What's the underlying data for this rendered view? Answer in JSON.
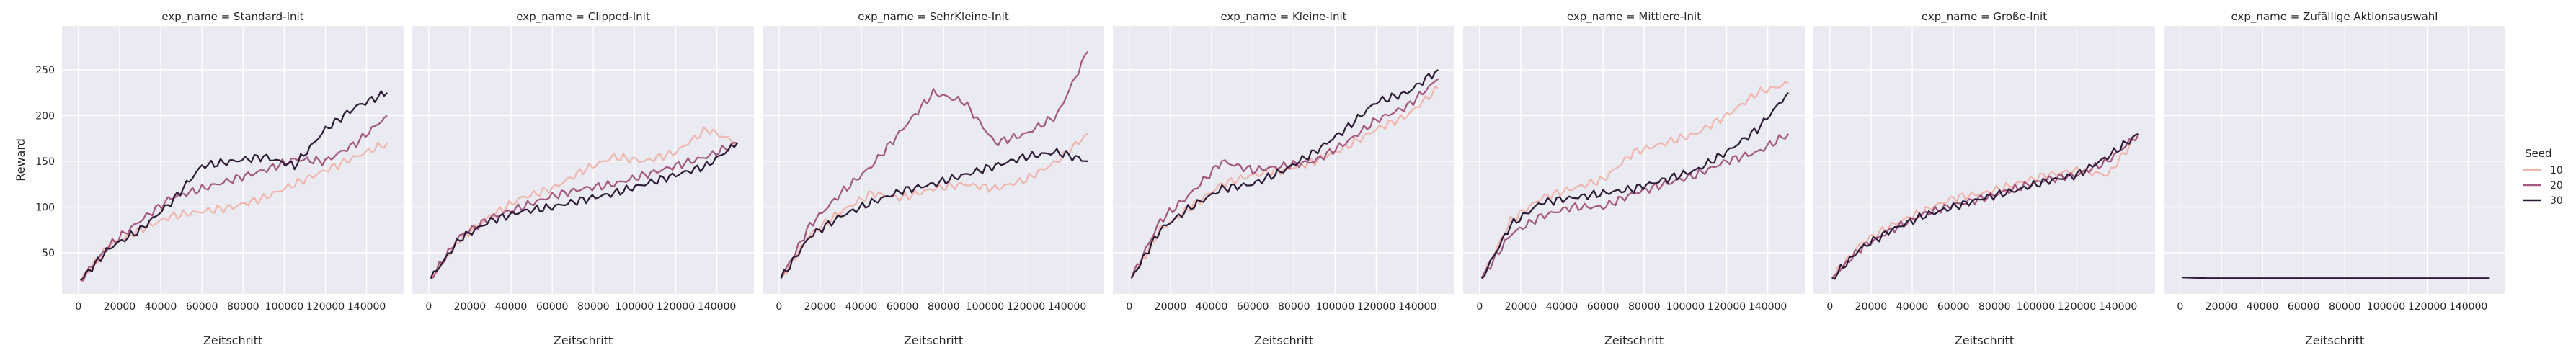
{
  "chart_data": {
    "type": "line",
    "facet_titles": [
      "exp_name = Standard-Init",
      "exp_name = Clipped-Init",
      "exp_name = SehrKleine-Init",
      "exp_name = Kleine-Init",
      "exp_name = Mittlere-Init",
      "exp_name = Große-Init",
      "exp_name = Zufällige Aktionsauswahl"
    ],
    "xlabel": "Zeitschritt",
    "ylabel": "Reward",
    "x_ticks": [
      0,
      20000,
      40000,
      60000,
      80000,
      100000,
      120000,
      140000
    ],
    "y_ticks": [
      50,
      100,
      150,
      200,
      250
    ],
    "xlim": [
      -8000,
      158000
    ],
    "ylim": [
      5,
      298
    ],
    "grid": true,
    "legend": {
      "title": "Seed",
      "placement": "right",
      "entries": [
        "10",
        "20",
        "30"
      ]
    },
    "series_colors": [
      "#efb6ad",
      "#a3587f",
      "#2c1a36"
    ],
    "panels": [
      {
        "title": "exp_name = Standard-Init",
        "x": [
          1000,
          15000,
          30000,
          45000,
          60000,
          75000,
          90000,
          105000,
          120000,
          135000,
          150000
        ],
        "series": [
          {
            "name": "10",
            "values": [
              20,
              58,
              75,
              90,
              95,
              100,
              110,
              125,
              140,
              155,
              170
            ]
          },
          {
            "name": "20",
            "values": [
              20,
              58,
              85,
              110,
              120,
              130,
              140,
              152,
              150,
              170,
              200
            ]
          },
          {
            "name": "30",
            "values": [
              20,
              55,
              75,
              105,
              145,
              150,
              155,
              145,
              185,
              210,
              225
            ]
          }
        ]
      },
      {
        "title": "exp_name = Clipped-Init",
        "x": [
          1000,
          15000,
          30000,
          45000,
          60000,
          75000,
          90000,
          105000,
          120000,
          135000,
          150000
        ],
        "series": [
          {
            "name": "10",
            "values": [
              22,
              65,
              90,
              110,
              120,
              140,
              155,
              150,
              160,
              185,
              170
            ]
          },
          {
            "name": "20",
            "values": [
              22,
              68,
              88,
              100,
              112,
              120,
              125,
              135,
              145,
              155,
              170
            ]
          },
          {
            "name": "30",
            "values": [
              22,
              65,
              85,
              95,
              100,
              108,
              115,
              125,
              135,
              145,
              170
            ]
          }
        ]
      },
      {
        "title": "exp_name = SehrKleine-Init",
        "x": [
          1000,
          15000,
          30000,
          45000,
          60000,
          75000,
          90000,
          105000,
          120000,
          135000,
          150000
        ],
        "series": [
          {
            "name": "10",
            "values": [
              22,
              70,
              95,
              115,
              110,
              120,
              125,
              120,
              130,
              150,
              180
            ]
          },
          {
            "name": "20",
            "values": [
              22,
              80,
              115,
              145,
              185,
              225,
              215,
              170,
              180,
              200,
              270
            ]
          },
          {
            "name": "30",
            "values": [
              22,
              68,
              90,
              105,
              118,
              125,
              135,
              145,
              155,
              160,
              150
            ]
          }
        ]
      },
      {
        "title": "exp_name = Kleine-Init",
        "x": [
          1000,
          15000,
          30000,
          45000,
          60000,
          75000,
          90000,
          105000,
          120000,
          135000,
          150000
        ],
        "series": [
          {
            "name": "10",
            "values": [
              22,
              75,
              100,
              125,
              135,
              140,
              150,
              165,
              185,
              200,
              230
            ]
          },
          {
            "name": "20",
            "values": [
              22,
              85,
              115,
              150,
              140,
              145,
              150,
              170,
              195,
              210,
              240
            ]
          },
          {
            "name": "30",
            "values": [
              22,
              75,
              100,
              120,
              125,
              140,
              160,
              185,
              215,
              225,
              250
            ]
          }
        ]
      },
      {
        "title": "exp_name = Mittlere-Init",
        "x": [
          1000,
          15000,
          30000,
          45000,
          60000,
          75000,
          90000,
          105000,
          120000,
          135000,
          150000
        ],
        "series": [
          {
            "name": "10",
            "values": [
              22,
              85,
              110,
              120,
              130,
              160,
              170,
              180,
              200,
              225,
              235
            ]
          },
          {
            "name": "20",
            "values": [
              22,
              70,
              90,
              100,
              100,
              115,
              125,
              135,
              150,
              160,
              180
            ]
          },
          {
            "name": "30",
            "values": [
              22,
              80,
              105,
              110,
              115,
              120,
              130,
              140,
              160,
              185,
              225
            ]
          }
        ]
      },
      {
        "title": "exp_name = Große-Init",
        "x": [
          1000,
          15000,
          30000,
          45000,
          60000,
          75000,
          90000,
          105000,
          120000,
          135000,
          150000
        ],
        "series": [
          {
            "name": "10",
            "values": [
              22,
              60,
              80,
              95,
              110,
              115,
              125,
              135,
              140,
              135,
              180
            ]
          },
          {
            "name": "20",
            "values": [
              22,
              55,
              75,
              92,
              102,
              110,
              120,
              130,
              135,
              150,
              180
            ]
          },
          {
            "name": "30",
            "values": [
              22,
              55,
              75,
              90,
              100,
              110,
              118,
              128,
              135,
              155,
              180
            ]
          }
        ]
      },
      {
        "title": "exp_name = Zufällige Aktionsauswahl",
        "x": [
          1000,
          15000,
          30000,
          45000,
          60000,
          75000,
          90000,
          105000,
          120000,
          135000,
          150000
        ],
        "series": [
          {
            "name": "10",
            "values": [
              23,
              22,
              22,
              22,
              22,
              22,
              22,
              22,
              22,
              22,
              22
            ]
          },
          {
            "name": "20",
            "values": [
              23,
              22,
              22,
              22,
              22,
              22,
              22,
              22,
              22,
              22,
              22
            ]
          },
          {
            "name": "30",
            "values": [
              23,
              22,
              22,
              22,
              22,
              22,
              22,
              22,
              22,
              22,
              22
            ]
          }
        ]
      }
    ]
  }
}
